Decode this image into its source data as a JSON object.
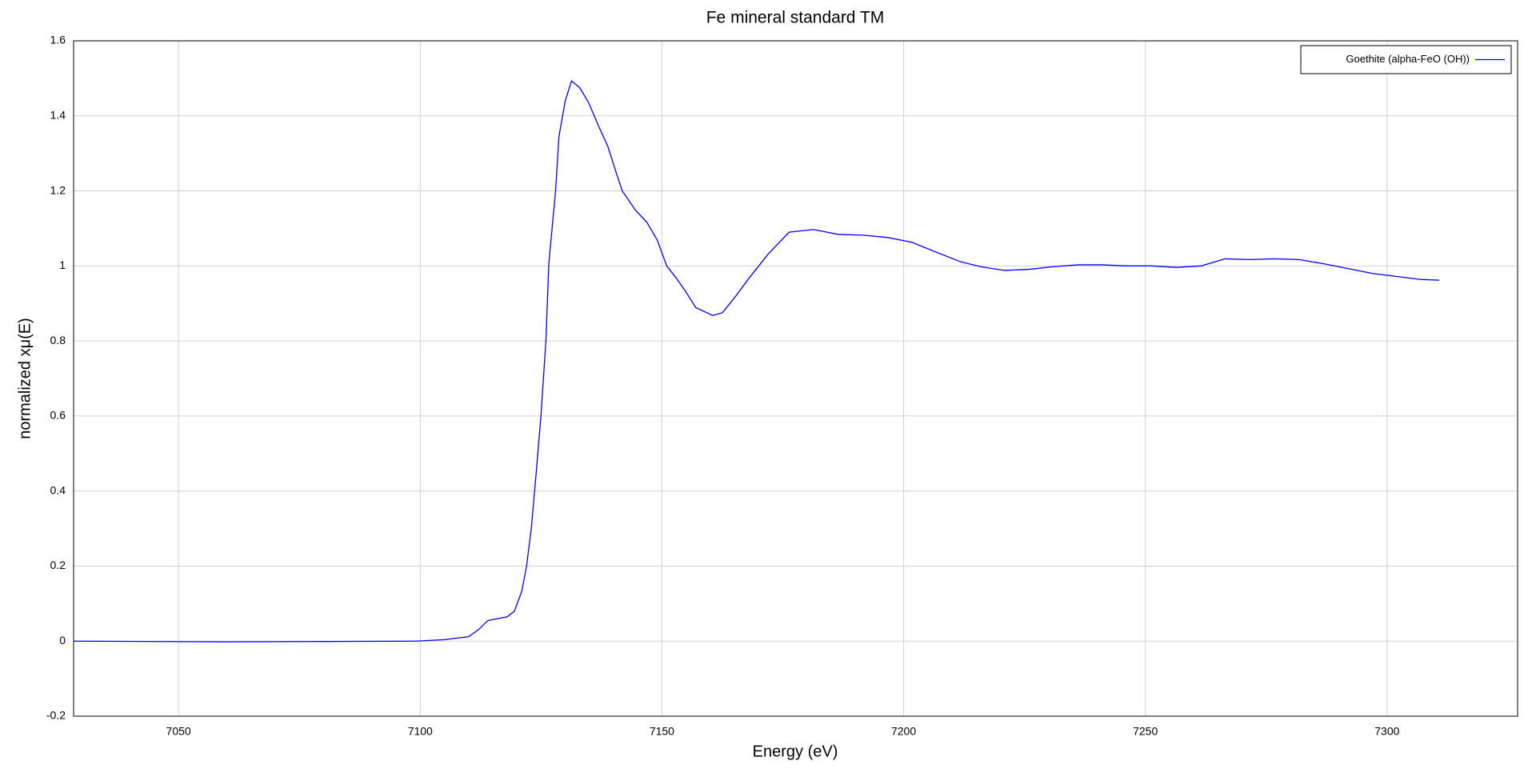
{
  "chart_data": {
    "type": "line",
    "title": "Fe mineral standard TM",
    "x_label": "Energy    (eV)",
    "y_label": "normalized xμ(E)",
    "xlim": [
      7028.3,
      7327
    ],
    "ylim": [
      -0.2,
      1.6
    ],
    "xticks": [
      7050,
      7100,
      7150,
      7200,
      7250,
      7300
    ],
    "yticks": [
      -0.2,
      0,
      0.2,
      0.4,
      0.6,
      0.8,
      1,
      1.2,
      1.4,
      1.6
    ],
    "grid": true,
    "legend": "upper right",
    "series": [
      {
        "name": "Goethite (alpha-FeO (OH))",
        "color": "#0000ff",
        "x": [
          7028.3,
          7060,
          7080,
          7099,
          7105,
          7110,
          7112,
          7114,
          7116,
          7118,
          7119.5,
          7121,
          7122,
          7123,
          7124,
          7125,
          7126,
          7126.6,
          7128,
          7128.7,
          7130,
          7131.3,
          7133,
          7134.8,
          7137,
          7138.8,
          7140.5,
          7141.8,
          7144.5,
          7146.9,
          7149,
          7151,
          7153,
          7155,
          7157,
          7160.5,
          7162.5,
          7165,
          7168,
          7172,
          7176.3,
          7181.4,
          7186.5,
          7191.5,
          7196.6,
          7201.7,
          7206.7,
          7211.8,
          7215.9,
          7220.9,
          7226,
          7231,
          7236.1,
          7241.2,
          7246.2,
          7251.3,
          7256.4,
          7261.5,
          7266.5,
          7271.6,
          7276.7,
          7281.8,
          7286.8,
          7291.9,
          7297,
          7302,
          7307,
          7310.8
        ],
        "values": [
          0,
          -0.002,
          -0.001,
          0,
          0.004,
          0.012,
          0.03,
          0.055,
          0.06,
          0.065,
          0.08,
          0.133,
          0.2,
          0.303,
          0.45,
          0.605,
          0.8,
          1.006,
          1.2,
          1.345,
          1.44,
          1.493,
          1.475,
          1.436,
          1.37,
          1.319,
          1.25,
          1.2,
          1.149,
          1.116,
          1.07,
          1.0,
          0.967,
          0.93,
          0.889,
          0.868,
          0.875,
          0.915,
          0.967,
          1.032,
          1.09,
          1.097,
          1.084,
          1.082,
          1.076,
          1.063,
          1.037,
          1.011,
          0.998,
          0.988,
          0.991,
          0.998,
          1.003,
          1.003,
          1.0,
          1.0,
          0.996,
          1.0,
          1.019,
          1.017,
          1.019,
          1.017,
          1.006,
          0.993,
          0.98,
          0.972,
          0.964,
          0.962
        ]
      }
    ]
  }
}
